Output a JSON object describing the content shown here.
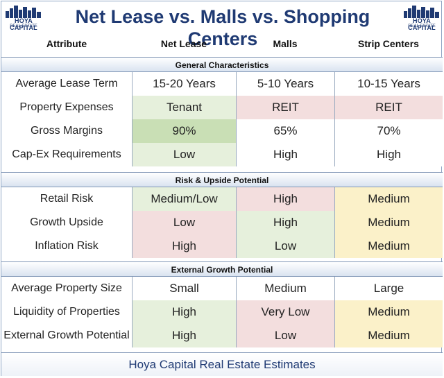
{
  "title": "Net Lease vs. Malls vs. Shopping Centers",
  "logo": {
    "name": "HOYA CAPITAL",
    "sub": "REAL ESTATE"
  },
  "colors": {
    "title": "#1f3a73",
    "neutral": "#ffffff",
    "green": "#e6f0dc",
    "green_strong": "#c9dfb5",
    "red": "#f3dede",
    "yellow": "#fbf1c9"
  },
  "columns": [
    "Attribute",
    "Net Lease",
    "Malls",
    "Strip Centers"
  ],
  "chart_data": {
    "type": "table",
    "sections": [
      {
        "name": "General Characteristics",
        "rows": [
          {
            "attribute": "Average Lease Term",
            "values": [
              "15-20 Years",
              "5-10 Years",
              "10-15 Years"
            ],
            "colors": [
              "neutral",
              "neutral",
              "neutral"
            ]
          },
          {
            "attribute": "Property Expenses",
            "values": [
              "Tenant",
              "REIT",
              "REIT"
            ],
            "colors": [
              "green",
              "red",
              "red"
            ]
          },
          {
            "attribute": "Gross Margins",
            "values": [
              "90%",
              "65%",
              "70%"
            ],
            "colors": [
              "green_strong",
              "neutral",
              "neutral"
            ]
          },
          {
            "attribute": "Cap-Ex Requirements",
            "values": [
              "Low",
              "High",
              "High"
            ],
            "colors": [
              "green",
              "neutral",
              "neutral"
            ]
          }
        ]
      },
      {
        "name": "Risk & Upside Potential",
        "rows": [
          {
            "attribute": "Retail Risk",
            "values": [
              "Medium/Low",
              "High",
              "Medium"
            ],
            "colors": [
              "green",
              "red",
              "yellow"
            ]
          },
          {
            "attribute": "Growth Upside",
            "values": [
              "Low",
              "High",
              "Medium"
            ],
            "colors": [
              "red",
              "green",
              "yellow"
            ]
          },
          {
            "attribute": "Inflation Risk",
            "values": [
              "High",
              "Low",
              "Medium"
            ],
            "colors": [
              "red",
              "green",
              "yellow"
            ]
          }
        ]
      },
      {
        "name": "External Growth Potential",
        "rows": [
          {
            "attribute": "Average Property Size",
            "values": [
              "Small",
              "Medium",
              "Large"
            ],
            "colors": [
              "neutral",
              "neutral",
              "neutral"
            ]
          },
          {
            "attribute": "Liquidity of Properties",
            "values": [
              "High",
              "Very Low",
              "Medium"
            ],
            "colors": [
              "green",
              "red",
              "yellow"
            ]
          },
          {
            "attribute": "External Growth Potential",
            "values": [
              "High",
              "Low",
              "Medium"
            ],
            "colors": [
              "green",
              "red",
              "yellow"
            ]
          }
        ]
      }
    ]
  },
  "footer": "Hoya Capital Real Estate Estimates"
}
